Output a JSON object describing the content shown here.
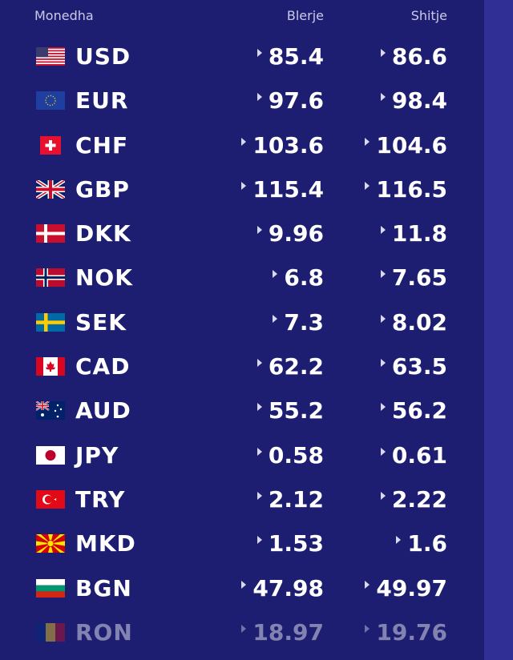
{
  "header": {
    "currency": "Monedha",
    "buy": "Blerje",
    "sell": "Shitje"
  },
  "rates": [
    {
      "code": "USD",
      "flag": "us-flag-icon",
      "buy": "85.4",
      "sell": "86.6"
    },
    {
      "code": "EUR",
      "flag": "eu-flag-icon",
      "buy": "97.6",
      "sell": "98.4"
    },
    {
      "code": "CHF",
      "flag": "ch-flag-icon",
      "buy": "103.6",
      "sell": "104.6"
    },
    {
      "code": "GBP",
      "flag": "gb-flag-icon",
      "buy": "115.4",
      "sell": "116.5"
    },
    {
      "code": "DKK",
      "flag": "dk-flag-icon",
      "buy": "9.96",
      "sell": "11.8"
    },
    {
      "code": "NOK",
      "flag": "no-flag-icon",
      "buy": "6.8",
      "sell": "7.65"
    },
    {
      "code": "SEK",
      "flag": "se-flag-icon",
      "buy": "7.3",
      "sell": "8.02"
    },
    {
      "code": "CAD",
      "flag": "ca-flag-icon",
      "buy": "62.2",
      "sell": "63.5"
    },
    {
      "code": "AUD",
      "flag": "au-flag-icon",
      "buy": "55.2",
      "sell": "56.2"
    },
    {
      "code": "JPY",
      "flag": "jp-flag-icon",
      "buy": "0.58",
      "sell": "0.61"
    },
    {
      "code": "TRY",
      "flag": "tr-flag-icon",
      "buy": "2.12",
      "sell": "2.22"
    },
    {
      "code": "MKD",
      "flag": "mk-flag-icon",
      "buy": "1.53",
      "sell": "1.6"
    },
    {
      "code": "BGN",
      "flag": "bg-flag-icon",
      "buy": "47.98",
      "sell": "49.97"
    },
    {
      "code": "RON",
      "flag": "ro-flag-icon",
      "buy": "18.97",
      "sell": "19.76"
    }
  ],
  "colors": {
    "background": "#1d1d72",
    "side_strip": "#2f2f95",
    "text": "#ffffff",
    "header_text": "#c9cbe8"
  }
}
